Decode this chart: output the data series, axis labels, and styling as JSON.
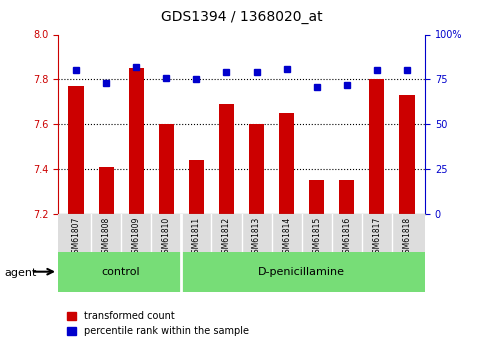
{
  "title": "GDS1394 / 1368020_at",
  "samples": [
    "GSM61807",
    "GSM61808",
    "GSM61809",
    "GSM61810",
    "GSM61811",
    "GSM61812",
    "GSM61813",
    "GSM61814",
    "GSM61815",
    "GSM61816",
    "GSM61817",
    "GSM61818"
  ],
  "transformed_count": [
    7.77,
    7.41,
    7.85,
    7.6,
    7.44,
    7.69,
    7.6,
    7.65,
    7.35,
    7.35,
    7.8,
    7.73
  ],
  "percentile_rank": [
    80,
    73,
    82,
    76,
    75,
    79,
    79,
    81,
    71,
    72,
    80,
    80
  ],
  "control_count": 4,
  "ylim_left": [
    7.2,
    8.0
  ],
  "ylim_right": [
    0,
    100
  ],
  "yticks_left": [
    7.2,
    7.4,
    7.6,
    7.8,
    8.0
  ],
  "yticks_right": [
    0,
    25,
    50,
    75,
    100
  ],
  "bar_color": "#cc0000",
  "dot_color": "#0000cc",
  "grid_color": "#000000",
  "bg_color": "#ffffff",
  "control_label": "control",
  "treatment_label": "D-penicillamine",
  "group_bar_color": "#77dd77",
  "xlabel_area_color": "#cccccc",
  "agent_label": "agent",
  "legend_red_label": "transformed count",
  "legend_blue_label": "percentile rank within the sample"
}
